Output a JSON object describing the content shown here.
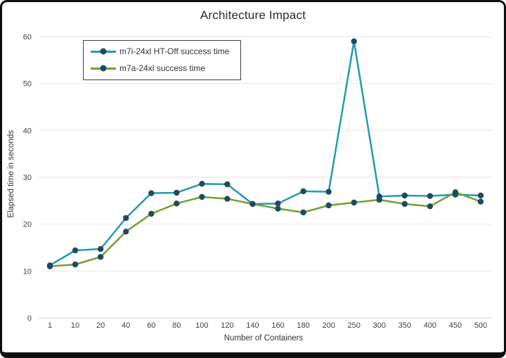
{
  "chart_data": {
    "type": "line",
    "title": "Architecture Impact",
    "xlabel": "Number of Containers",
    "ylabel": "Elapsed time in seconds",
    "categories": [
      "1",
      "10",
      "20",
      "40",
      "60",
      "80",
      "100",
      "120",
      "140",
      "160",
      "180",
      "200",
      "250",
      "300",
      "350",
      "400",
      "450",
      "500"
    ],
    "series": [
      {
        "name": "m7i-24xl HT-Off success time",
        "color": "#2498B6",
        "values": [
          11.2,
          14.4,
          14.7,
          21.3,
          26.6,
          26.7,
          28.6,
          28.5,
          24.3,
          24.4,
          27.0,
          26.9,
          59.0,
          25.9,
          26.1,
          26.0,
          26.3,
          26.1
        ]
      },
      {
        "name": "m7a-24xl success time",
        "color": "#6FA22F",
        "values": [
          11.0,
          11.4,
          13.0,
          18.4,
          22.2,
          24.4,
          25.8,
          25.4,
          24.3,
          23.3,
          22.5,
          24.0,
          24.6,
          25.2,
          24.3,
          23.8,
          26.8,
          24.8
        ]
      }
    ],
    "marker_color": "#1E4B5F",
    "ylim": [
      0,
      60
    ],
    "y_ticks": [
      0,
      10,
      20,
      30,
      40,
      50,
      60
    ],
    "grid": "horizontal",
    "grid_color": "#E8E8E8",
    "axis_line_color": "#D9D9D9",
    "legend_position": "top-left-inside"
  },
  "frame": {
    "background": "#ffffff",
    "border_color": "#0f0f0f"
  }
}
